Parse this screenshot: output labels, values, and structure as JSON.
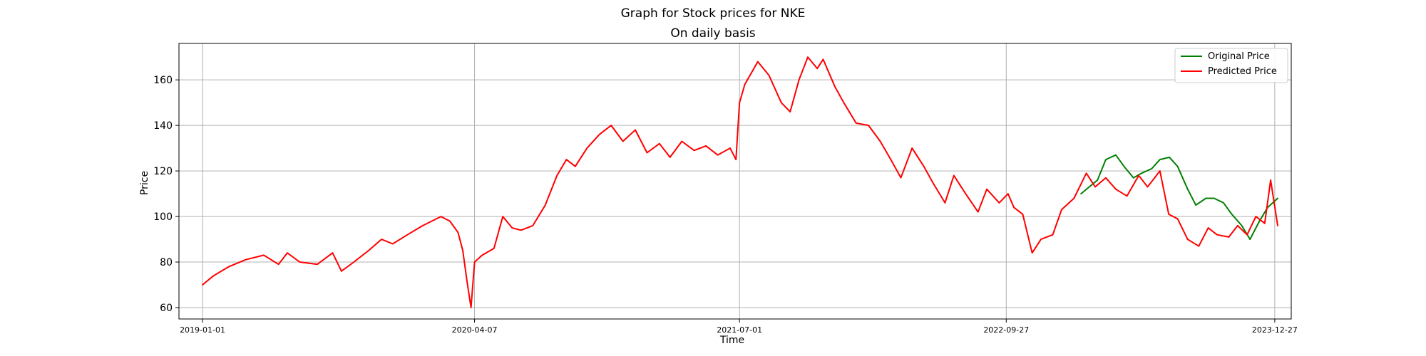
{
  "chart_data": {
    "type": "line",
    "suptitle": "Graph for Stock prices for NKE",
    "title": "On daily basis",
    "xlabel": "Time",
    "ylabel": "Price",
    "xlim": [
      "2018-11-22",
      "2024-01-24"
    ],
    "ylim": [
      55,
      176
    ],
    "xticks": [
      "2019-01-01",
      "2020-04-07",
      "2021-07-01",
      "2022-09-27",
      "2023-12-27"
    ],
    "yticks": [
      60,
      80,
      100,
      120,
      140,
      160
    ],
    "grid": true,
    "legend": {
      "location": "top-right",
      "entries": [
        "Original Price",
        "Predicted Price"
      ]
    },
    "series": [
      {
        "name": "Original Price",
        "color": "#008000",
        "dates": [
          "2023-02-01",
          "2023-02-15",
          "2023-03-01",
          "2023-03-15",
          "2023-04-01",
          "2023-04-15",
          "2023-05-01",
          "2023-05-15",
          "2023-06-01",
          "2023-06-15",
          "2023-07-01",
          "2023-07-15",
          "2023-08-01",
          "2023-08-15",
          "2023-09-01",
          "2023-09-15",
          "2023-10-01",
          "2023-10-15",
          "2023-11-01",
          "2023-11-15",
          "2023-12-01",
          "2023-12-15",
          "2024-01-01"
        ],
        "values": [
          110,
          113,
          116,
          125,
          127,
          122,
          117,
          119,
          121,
          125,
          126,
          122,
          112,
          105,
          108,
          108,
          106,
          101,
          96,
          90,
          98,
          104,
          108
        ]
      },
      {
        "name": "Predicted Price",
        "color": "#ff0000",
        "dates": [
          "2019-01-01",
          "2019-01-20",
          "2019-02-15",
          "2019-03-15",
          "2019-04-15",
          "2019-05-10",
          "2019-05-25",
          "2019-06-15",
          "2019-07-15",
          "2019-08-10",
          "2019-08-25",
          "2019-09-15",
          "2019-10-10",
          "2019-11-01",
          "2019-11-20",
          "2019-12-15",
          "2020-01-10",
          "2020-02-10",
          "2020-02-25",
          "2020-03-10",
          "2020-03-18",
          "2020-03-25",
          "2020-04-01",
          "2020-04-07",
          "2020-04-20",
          "2020-05-10",
          "2020-05-25",
          "2020-06-10",
          "2020-06-25",
          "2020-07-15",
          "2020-08-05",
          "2020-08-25",
          "2020-09-10",
          "2020-09-25",
          "2020-10-15",
          "2020-11-05",
          "2020-11-25",
          "2020-12-15",
          "2021-01-05",
          "2021-01-25",
          "2021-02-15",
          "2021-03-05",
          "2021-03-25",
          "2021-04-15",
          "2021-05-05",
          "2021-05-25",
          "2021-06-15",
          "2021-06-25",
          "2021-07-01",
          "2021-07-10",
          "2021-08-01",
          "2021-08-20",
          "2021-09-10",
          "2021-09-25",
          "2021-10-10",
          "2021-10-25",
          "2021-11-10",
          "2021-11-20",
          "2021-12-10",
          "2021-12-25",
          "2022-01-15",
          "2022-02-05",
          "2022-02-25",
          "2022-03-15",
          "2022-04-01",
          "2022-04-20",
          "2022-05-10",
          "2022-05-25",
          "2022-06-15",
          "2022-06-30",
          "2022-07-20",
          "2022-08-10",
          "2022-08-25",
          "2022-09-15",
          "2022-09-30",
          "2022-10-10",
          "2022-10-25",
          "2022-11-10",
          "2022-11-25",
          "2022-12-15",
          "2022-12-30",
          "2023-01-20",
          "2023-02-10",
          "2023-02-25",
          "2023-03-15",
          "2023-04-01",
          "2023-04-20",
          "2023-05-10",
          "2023-05-25",
          "2023-06-15",
          "2023-06-30",
          "2023-07-15",
          "2023-08-01",
          "2023-08-20",
          "2023-09-05",
          "2023-09-20",
          "2023-10-10",
          "2023-10-25",
          "2023-11-10",
          "2023-11-25",
          "2023-12-10",
          "2023-12-20",
          "2024-01-01"
        ],
        "values": [
          70,
          74,
          78,
          81,
          83,
          79,
          84,
          80,
          79,
          84,
          76,
          80,
          85,
          90,
          88,
          92,
          96,
          100,
          98,
          93,
          85,
          72,
          60,
          80,
          83,
          86,
          100,
          95,
          94,
          96,
          105,
          118,
          125,
          122,
          130,
          136,
          140,
          133,
          138,
          128,
          132,
          126,
          133,
          129,
          131,
          127,
          130,
          125,
          150,
          158,
          168,
          162,
          150,
          146,
          160,
          170,
          165,
          169,
          157,
          150,
          141,
          140,
          133,
          125,
          117,
          130,
          122,
          115,
          106,
          118,
          110,
          102,
          112,
          106,
          110,
          104,
          101,
          84,
          90,
          92,
          103,
          108,
          119,
          113,
          117,
          112,
          109,
          118,
          113,
          120,
          101,
          99,
          90,
          87,
          95,
          92,
          91,
          96,
          92,
          100,
          97,
          116,
          96
        ]
      }
    ]
  }
}
